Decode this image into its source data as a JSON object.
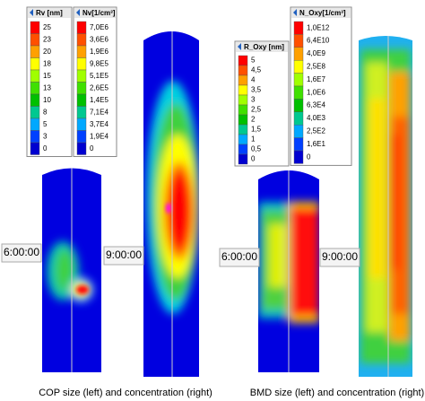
{
  "left_panel": {
    "legends": [
      {
        "title": "Rv [nm]",
        "labels": [
          "25",
          "23",
          "20",
          "18",
          "15",
          "13",
          "10",
          "8",
          "5",
          "3",
          "0"
        ]
      },
      {
        "title": "Nv[1/cm³]",
        "labels": [
          "7,0E6",
          "3,6E6",
          "1,9E6",
          "9,8E5",
          "5,1E5",
          "2,6E5",
          "1,4E5",
          "7,1E4",
          "3,7E4",
          "1,9E4",
          "0"
        ]
      }
    ],
    "times": [
      "6:00:00",
      "9:00:00"
    ],
    "caption": "COP size (left) and concentration (right)"
  },
  "right_panel": {
    "legends": [
      {
        "title": "R_Oxy [nm]",
        "labels": [
          "5",
          "4,5",
          "4",
          "3,5",
          "3",
          "2,5",
          "2",
          "1,5",
          "1",
          "0,5",
          "0"
        ]
      },
      {
        "title": "N_Oxy[1/cm³]",
        "labels": [
          "1,0E12",
          "6,4E10",
          "4,0E9",
          "2,5E8",
          "1,6E7",
          "1,0E6",
          "6,3E4",
          "4,0E3",
          "2,5E2",
          "1,6E1",
          "0"
        ]
      }
    ],
    "times": [
      "6:00:00",
      "9:00:00"
    ],
    "caption": "BMD size (left) and concentration (right)"
  }
}
